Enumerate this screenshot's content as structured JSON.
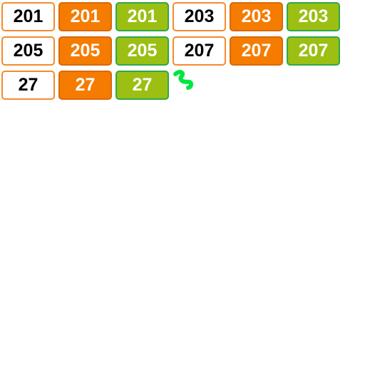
{
  "tiles": [
    {
      "label": "201",
      "style": "white"
    },
    {
      "label": "201",
      "style": "orange"
    },
    {
      "label": "201",
      "style": "green"
    },
    {
      "label": "203",
      "style": "white"
    },
    {
      "label": "203",
      "style": "orange"
    },
    {
      "label": "203",
      "style": "green"
    },
    {
      "label": "205",
      "style": "white"
    },
    {
      "label": "205",
      "style": "orange"
    },
    {
      "label": "205",
      "style": "green"
    },
    {
      "label": "207",
      "style": "white"
    },
    {
      "label": "207",
      "style": "orange"
    },
    {
      "label": "207",
      "style": "green"
    },
    {
      "label": "27",
      "style": "white"
    },
    {
      "label": "27",
      "style": "orange"
    },
    {
      "label": "27",
      "style": "green"
    }
  ],
  "colors": {
    "orange": "#f57c00",
    "orange_border": "#f58a2c",
    "green": "#9bbf12",
    "green_border": "#2fa84a",
    "cursor": "#00e640"
  },
  "cursor": {
    "icon": "drag-handle-icon"
  }
}
